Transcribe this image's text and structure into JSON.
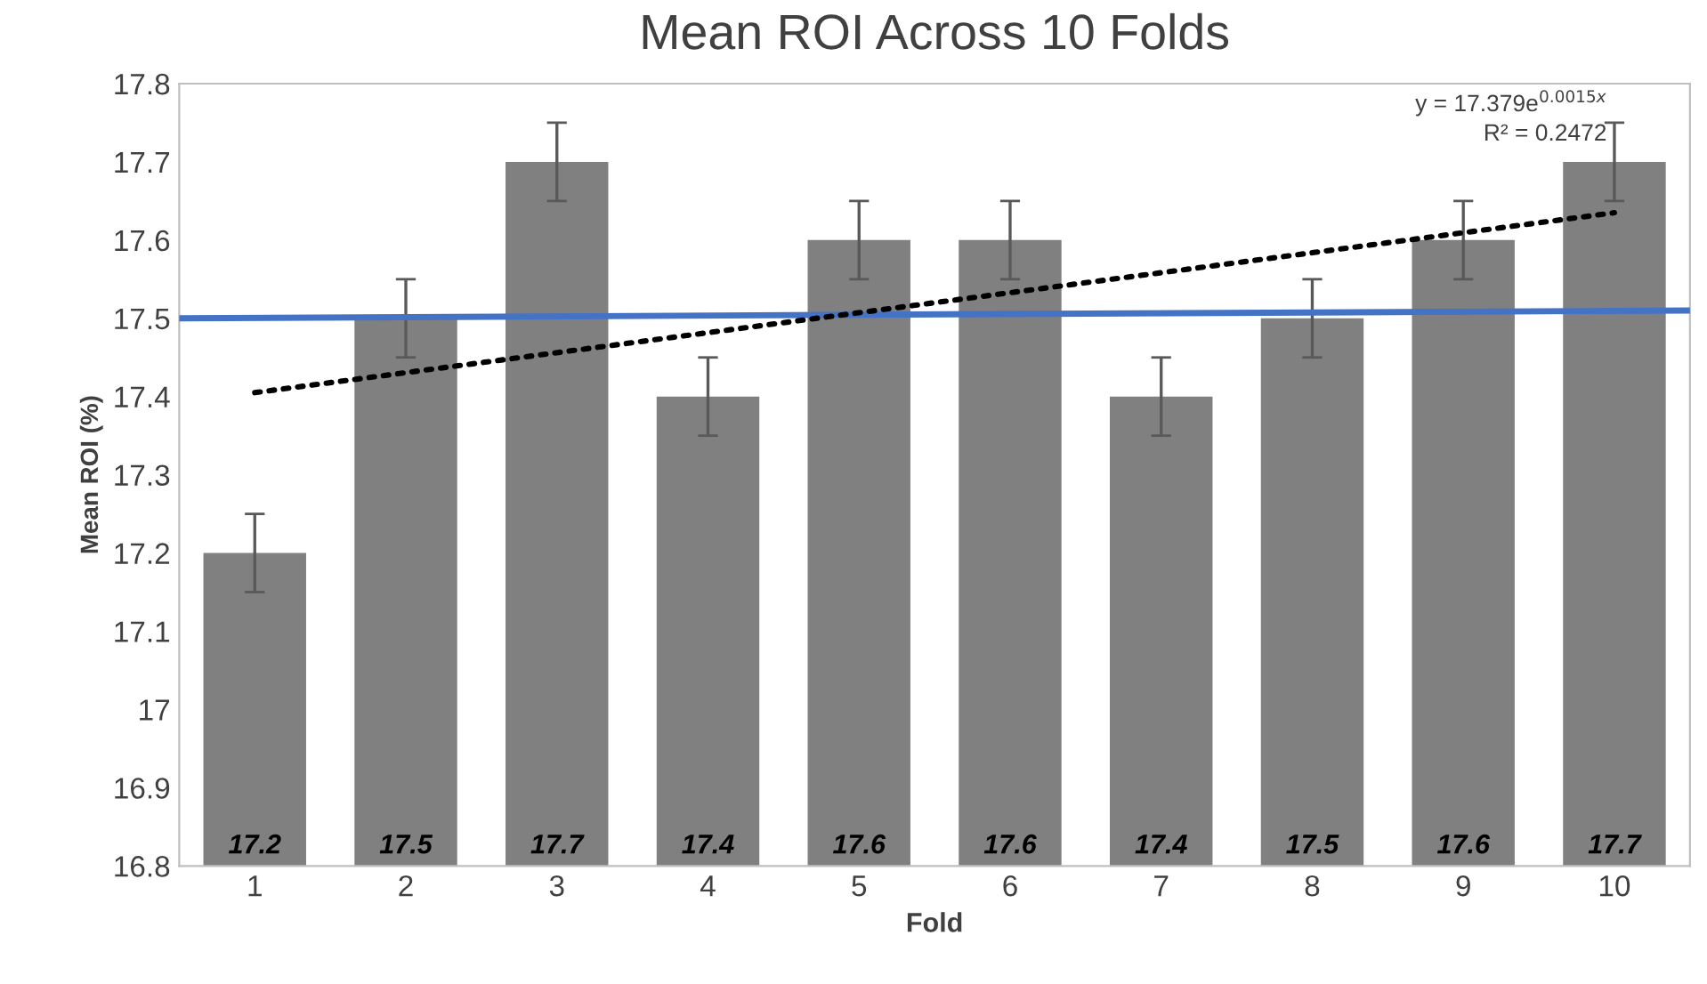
{
  "chart_data": {
    "type": "bar",
    "title": "Mean ROI Across 10 Folds",
    "xlabel": "Fold",
    "ylabel": "Mean ROI (%)",
    "x": [
      1,
      2,
      3,
      4,
      5,
      6,
      7,
      8,
      9,
      10
    ],
    "xlim": [
      0.5,
      10.5
    ],
    "xticks": [
      1,
      2,
      3,
      4,
      5,
      6,
      7,
      8,
      9,
      10
    ],
    "ylim": [
      16.8,
      17.8
    ],
    "yticks": [
      {
        "value": 16.8,
        "label": "16.8"
      },
      {
        "value": 16.9,
        "label": "16.9"
      },
      {
        "value": 17,
        "label": "17"
      },
      {
        "value": 17.1,
        "label": "17.1"
      },
      {
        "value": 17.2,
        "label": "17.2"
      },
      {
        "value": 17.3,
        "label": "17.3"
      },
      {
        "value": 17.4,
        "label": "17.4"
      },
      {
        "value": 17.5,
        "label": "17.5"
      },
      {
        "value": 17.6,
        "label": "17.6"
      },
      {
        "value": 17.7,
        "label": "17.7"
      },
      {
        "value": 17.8,
        "label": "17.8"
      }
    ],
    "series": [
      {
        "color": "#808080",
        "values": [
          17.2,
          17.5,
          17.7,
          17.4,
          17.6,
          17.6,
          17.4,
          17.5,
          17.6,
          17.7
        ],
        "value_labels": [
          "17.2",
          "17.5",
          "17.7",
          "17.4",
          "17.6",
          "17.6",
          "17.4",
          "17.5",
          "17.6",
          "17.7"
        ],
        "errors": [
          0.05,
          0.05,
          0.05,
          0.05,
          0.05,
          0.05,
          0.05,
          0.05,
          0.05,
          0.05
        ]
      },
      {
        "type": "line",
        "color": "#4472c4",
        "x": [
          0.5,
          10.5
        ],
        "values": [
          17.5,
          17.51
        ],
        "line_style": "solid"
      },
      {
        "type": "line",
        "color": "#000000",
        "x": [
          1,
          10
        ],
        "values": [
          17.405,
          17.635
        ],
        "line_style": "dotted"
      }
    ],
    "grid": false,
    "legend": false,
    "annotations": [
      "y = 17.379e$^{0.0015x}$",
      "R² = 0.2472"
    ]
  }
}
